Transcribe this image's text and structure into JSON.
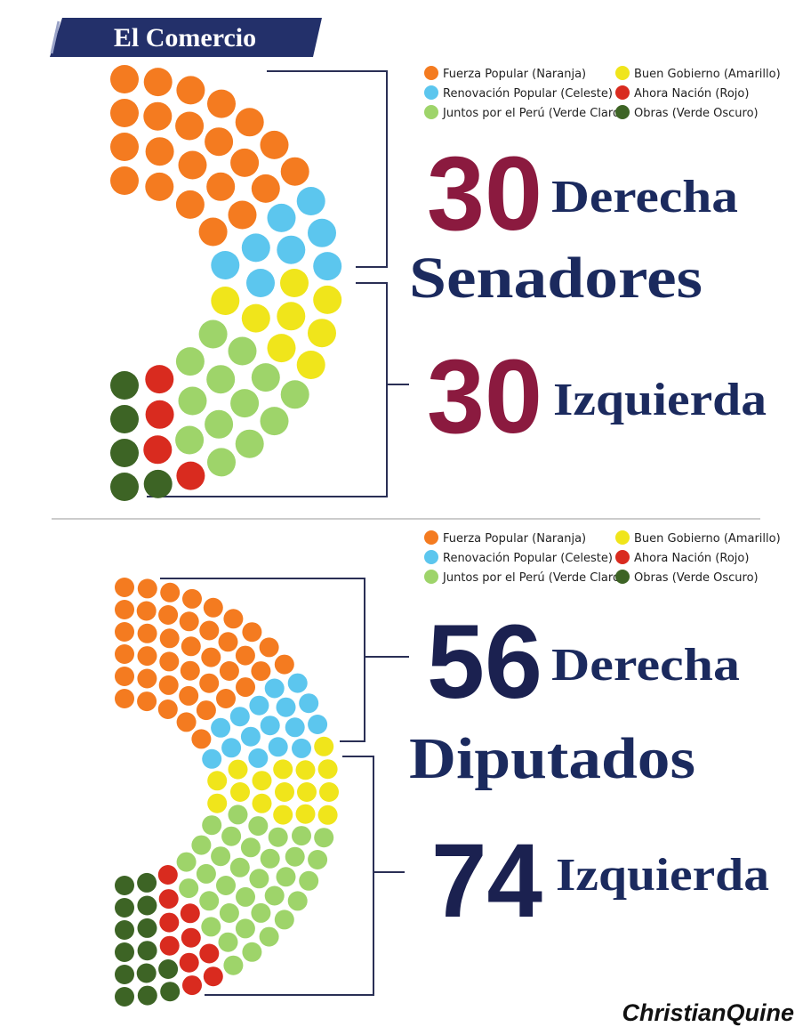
{
  "logo": "El Comercio",
  "credit": "ChristianQuine",
  "chart_data": [
    {
      "type": "parliament",
      "title": "Senadores",
      "groups": [
        {
          "value": 30,
          "label": "Derecha"
        },
        {
          "value": 30,
          "label": "Izquierda"
        }
      ],
      "series": [
        {
          "name": "Fuerza Popular (Naranja)",
          "color": "#f47b20",
          "values": [
            22
          ]
        },
        {
          "name": "Renovación Popular (Celeste)",
          "color": "#5cc6ee",
          "values": [
            8
          ]
        },
        {
          "name": "Buen Gobierno (Amarillo)",
          "color": "#f0e51b",
          "values": [
            8
          ]
        },
        {
          "name": "Juntos por el Perú (Verde Claro)",
          "color": "#9ed46a",
          "values": [
            13
          ]
        },
        {
          "name": "Ahora Nación (Rojo)",
          "color": "#d92b1f",
          "values": [
            4
          ]
        },
        {
          "name": "Obras (Verde Oscuro)",
          "color": "#3d6425",
          "values": [
            5
          ]
        }
      ]
    },
    {
      "type": "parliament",
      "title": "Diputados",
      "groups": [
        {
          "value": 56,
          "label": "Derecha"
        },
        {
          "value": 74,
          "label": "Izquierda"
        }
      ],
      "series": [
        {
          "name": "Fuerza Popular (Naranja)",
          "color": "#f47b20",
          "values": [
            40
          ]
        },
        {
          "name": "Renovación Popular (Celeste)",
          "color": "#5cc6ee",
          "values": [
            16
          ]
        },
        {
          "name": "Buen Gobierno (Amarillo)",
          "color": "#f0e51b",
          "values": [
            16
          ]
        },
        {
          "name": "Juntos por el Perú (Verde Claro)",
          "color": "#9ed46a",
          "values": [
            34
          ]
        },
        {
          "name": "Ahora Nación (Rojo)",
          "color": "#d92b1f",
          "values": [
            10
          ]
        },
        {
          "name": "Obras (Verde Oscuro)",
          "color": "#3d6425",
          "values": [
            14
          ]
        }
      ]
    }
  ]
}
